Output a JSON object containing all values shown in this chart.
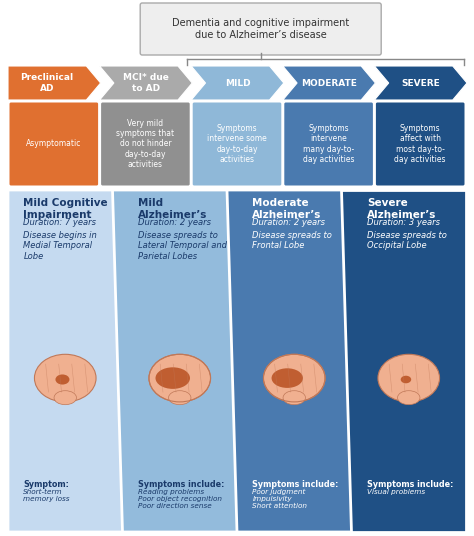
{
  "title_box": "Dementia and cognitive impairment\ndue to Alzheimer’s disease",
  "arrow_stages": [
    {
      "label": "Preclinical\nAD",
      "color": "#E07030",
      "text_color": "#ffffff"
    },
    {
      "label": "MCI* due\nto AD",
      "color": "#AAAAAA",
      "text_color": "#ffffff"
    },
    {
      "label": "MILD",
      "color": "#8FB8D8",
      "text_color": "#ffffff"
    },
    {
      "label": "MODERATE",
      "color": "#4A7AAF",
      "text_color": "#ffffff"
    },
    {
      "label": "SEVERE",
      "color": "#1F5085",
      "text_color": "#ffffff"
    }
  ],
  "symptom_boxes": [
    {
      "text": "Asymptomatic",
      "color": "#E07030",
      "text_color": "#ffffff",
      "gradient": false
    },
    {
      "text": "Very mild\nsymptoms that\ndo not hinder\nday-to-day\nactivities",
      "color": "#909090",
      "text_color": "#ffffff",
      "gradient": false
    },
    {
      "text": "Symptoms\nintervene some\nday-to-day\nactivities",
      "color": "#8FB8D8",
      "text_color": "#ffffff",
      "gradient": false
    },
    {
      "text": "Symptoms\nintervene\nmany day-to-\nday activities",
      "color": "#4A7AAF",
      "text_color": "#ffffff",
      "gradient": false
    },
    {
      "text": "Symptoms\naffect with\nmost day-to-\nday activities",
      "color": "#1F5085",
      "text_color": "#ffffff",
      "gradient": false
    }
  ],
  "bottom_panels": [
    {
      "title": "Mild Cognitive\nImpairment",
      "duration": "Duration: 7 years",
      "spread": "Disease begins in\nMedial Temporal\nLobe",
      "symptom_label": "Symptom:",
      "symptoms": "Short-term\nmemory loss",
      "color": "#C5DAF0",
      "title_color": "#1A3A6A",
      "text_color": "#1A3A6A",
      "brain_highlight": 0.2
    },
    {
      "title": "Mild\nAlzheimer’s",
      "duration": "Duration: 2 years",
      "spread": "Disease spreads to\nLateral Temporal and\nParietal Lobes",
      "symptom_label": "Symptoms include:",
      "symptoms": "Reading problems\nPoor object recognition\nPoor direction sense",
      "color": "#93BBDC",
      "title_color": "#1A3A6A",
      "text_color": "#1A3A6A",
      "brain_highlight": 0.55
    },
    {
      "title": "Moderate\nAlzheimer’s",
      "duration": "Duration: 2 years",
      "spread": "Disease spreads to\nFrontal Lobe",
      "symptom_label": "Symptoms include:",
      "symptoms": "Poor judgment\nImpulsivity\nShort attention",
      "color": "#4A7AAF",
      "title_color": "#ffffff",
      "text_color": "#ffffff",
      "brain_highlight": 0.5
    },
    {
      "title": "Severe\nAlzheimer’s",
      "duration": "Duration: 3 years",
      "spread": "Disease spreads to\nOccipital Lobe",
      "symptom_label": "Symptoms include:",
      "symptoms": "Visual problems",
      "color": "#1F5085",
      "title_color": "#ffffff",
      "text_color": "#ffffff",
      "brain_highlight": 0.15
    }
  ],
  "bg_color": "#ffffff",
  "fig_width": 4.74,
  "fig_height": 5.36
}
